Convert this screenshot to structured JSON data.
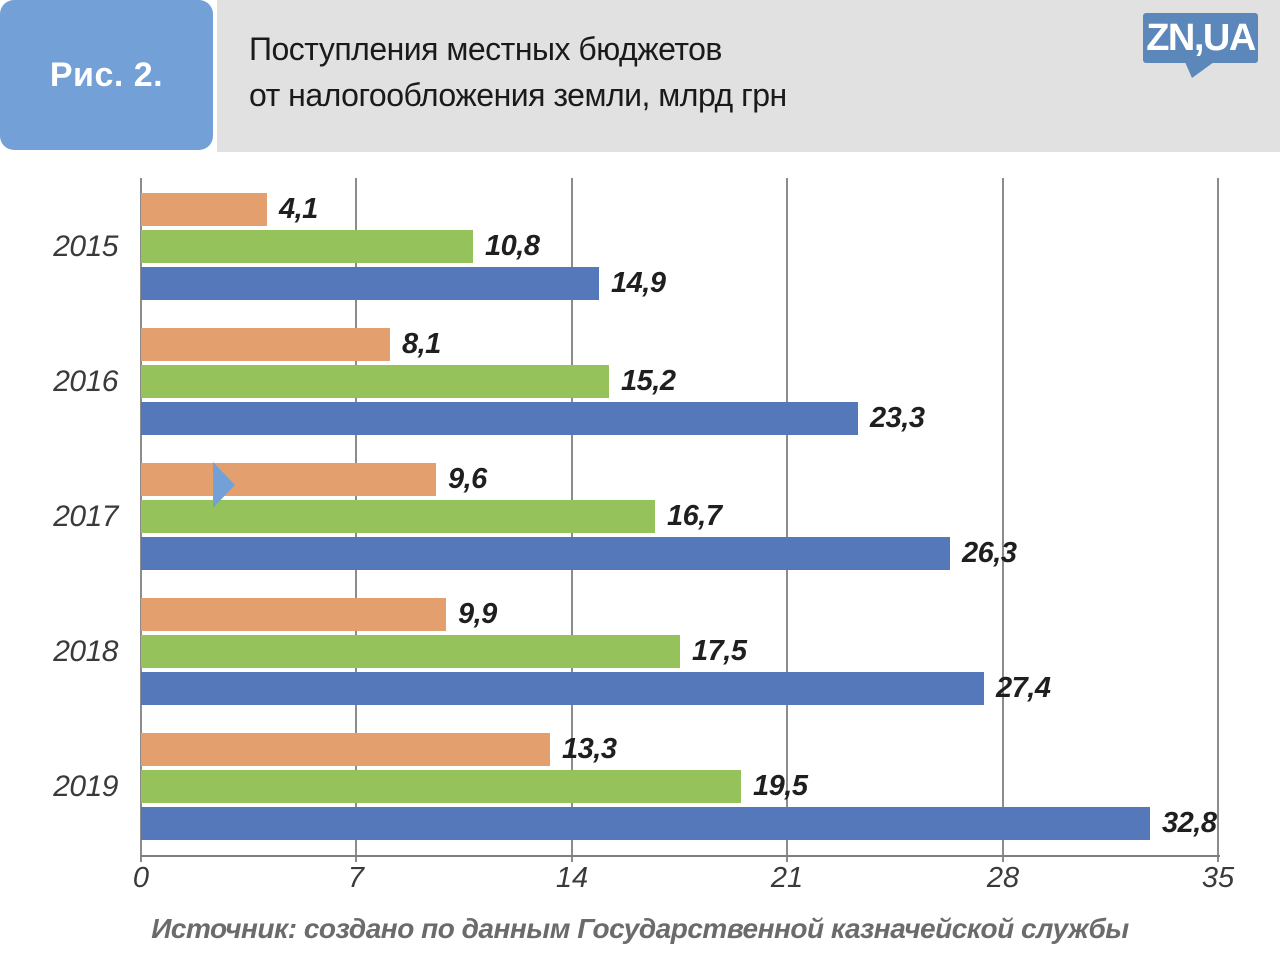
{
  "header": {
    "figure_label": "Рис. 2.",
    "title_line1": "Поступления местных бюджетов",
    "title_line2": "от налогообложения земли, млрд грн",
    "logo_text": "ZN,UA"
  },
  "footer": {
    "source": "Источник: создано по данным Государственной казначейской службы"
  },
  "colors": {
    "callout_blue": "#73A1D7",
    "logo_blue": "#5B87BB",
    "header_gray": "#E1E1E1",
    "series_orange": "#E3A06E",
    "series_green": "#95C25B",
    "series_blue": "#5478BA"
  },
  "chart_data": {
    "type": "bar",
    "orientation": "horizontal",
    "title": "Поступления местных бюджетов от налогообложения земли, млрд грн",
    "categories": [
      "2015",
      "2016",
      "2017",
      "2018",
      "2019"
    ],
    "series": [
      {
        "name": "series-orange",
        "color": "#E3A06E",
        "values": [
          4.1,
          8.1,
          9.6,
          9.9,
          13.3
        ]
      },
      {
        "name": "series-green",
        "color": "#95C25B",
        "values": [
          10.8,
          15.2,
          16.7,
          17.5,
          19.5
        ]
      },
      {
        "name": "series-blue",
        "color": "#5478BA",
        "values": [
          14.9,
          23.3,
          26.3,
          27.4,
          32.8
        ]
      }
    ],
    "x_ticks": [
      0,
      7,
      14,
      21,
      28,
      35
    ],
    "xlim": [
      0,
      35
    ],
    "grid": true,
    "legend": "none",
    "value_labels_shown": true,
    "number_format": "comma-decimal"
  }
}
